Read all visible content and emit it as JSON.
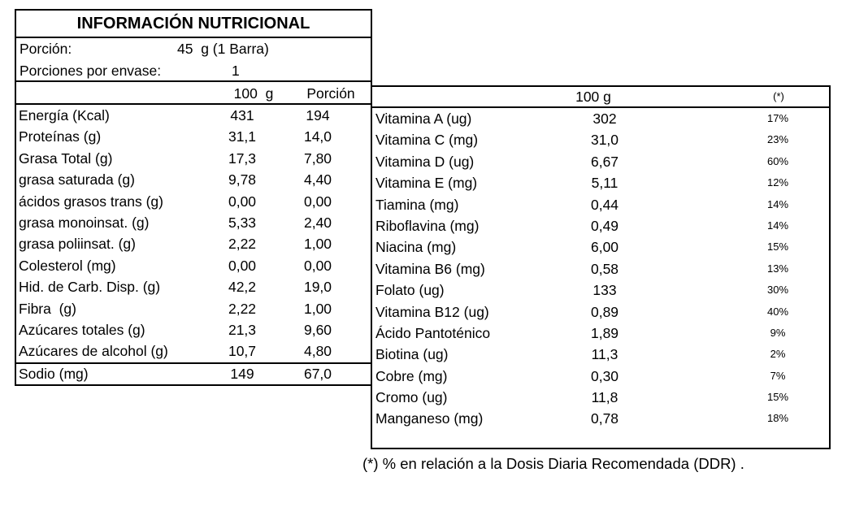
{
  "colors": {
    "background": "#ffffff",
    "text": "#000000",
    "border": "#000000"
  },
  "left_table": {
    "title": "INFORMACIÓN NUTRICIONAL",
    "portion": {
      "label": "Porción:",
      "value": "45  g (1 Barra)"
    },
    "servings": {
      "label": "Porciones por envase:",
      "value": "1"
    },
    "columns": {
      "per100": "100  g",
      "portion": "Porción"
    },
    "rows": [
      {
        "label": "Energía (Kcal)",
        "per100": "431",
        "portion": "194"
      },
      {
        "label": "Proteínas (g)",
        "per100": "31,1",
        "portion": "14,0"
      },
      {
        "label": "Grasa Total (g)",
        "per100": "17,3",
        "portion": "7,80"
      },
      {
        "label": "grasa saturada (g)",
        "per100": "9,78",
        "portion": "4,40"
      },
      {
        "label": "ácidos grasos trans (g)",
        "per100": "0,00",
        "portion": "0,00"
      },
      {
        "label": "grasa monoinsat. (g)",
        "per100": "5,33",
        "portion": "2,40"
      },
      {
        "label": "grasa poliinsat. (g)",
        "per100": "2,22",
        "portion": "1,00"
      },
      {
        "label": "Colesterol (mg)",
        "per100": "0,00",
        "portion": "0,00"
      },
      {
        "label": "Hid. de Carb. Disp. (g)",
        "per100": "42,2",
        "portion": "19,0"
      },
      {
        "label": "Fibra  (g)",
        "per100": "2,22",
        "portion": "1,00"
      },
      {
        "label": "Azúcares totales (g)",
        "per100": "21,3",
        "portion": "9,60"
      },
      {
        "label": "Azúcares de alcohol (g)",
        "per100": "10,7",
        "portion": "4,80"
      }
    ],
    "sodium_row": {
      "label": "Sodio (mg)",
      "per100": "149",
      "portion": "67,0"
    }
  },
  "right_table": {
    "columns": {
      "per100": "100 g",
      "ddr": "(*)"
    },
    "rows": [
      {
        "label": "Vitamina A (ug)",
        "per100": "302",
        "ddr": "17%"
      },
      {
        "label": "Vitamina C (mg)",
        "per100": "31,0",
        "ddr": "23%"
      },
      {
        "label": "Vitamina D (ug)",
        "per100": "6,67",
        "ddr": "60%"
      },
      {
        "label": "Vitamina E (mg)",
        "per100": "5,11",
        "ddr": "12%"
      },
      {
        "label": "Tiamina (mg)",
        "per100": "0,44",
        "ddr": "14%"
      },
      {
        "label": "Riboflavina (mg)",
        "per100": "0,49",
        "ddr": "14%"
      },
      {
        "label": "Niacina (mg)",
        "per100": "6,00",
        "ddr": "15%"
      },
      {
        "label": "Vitamina B6 (mg)",
        "per100": "0,58",
        "ddr": "13%"
      },
      {
        "label": "Folato (ug)",
        "per100": "133",
        "ddr": "30%"
      },
      {
        "label": "Vitamina B12 (ug)",
        "per100": "0,89",
        "ddr": "40%"
      },
      {
        "label": "Ácido Pantoténico",
        "per100": "1,89",
        "ddr": "9%"
      },
      {
        "label": "Biotina (ug)",
        "per100": "11,3",
        "ddr": "2%"
      },
      {
        "label": "Cobre (mg)",
        "per100": "0,30",
        "ddr": "7%"
      },
      {
        "label": "Cromo (ug)",
        "per100": "11,8",
        "ddr": "15%"
      },
      {
        "label": "Manganeso (mg)",
        "per100": "0,78",
        "ddr": "18%"
      }
    ]
  },
  "footnote": "(*) % en relación a la Dosis Diaria Recomendada (DDR) ."
}
